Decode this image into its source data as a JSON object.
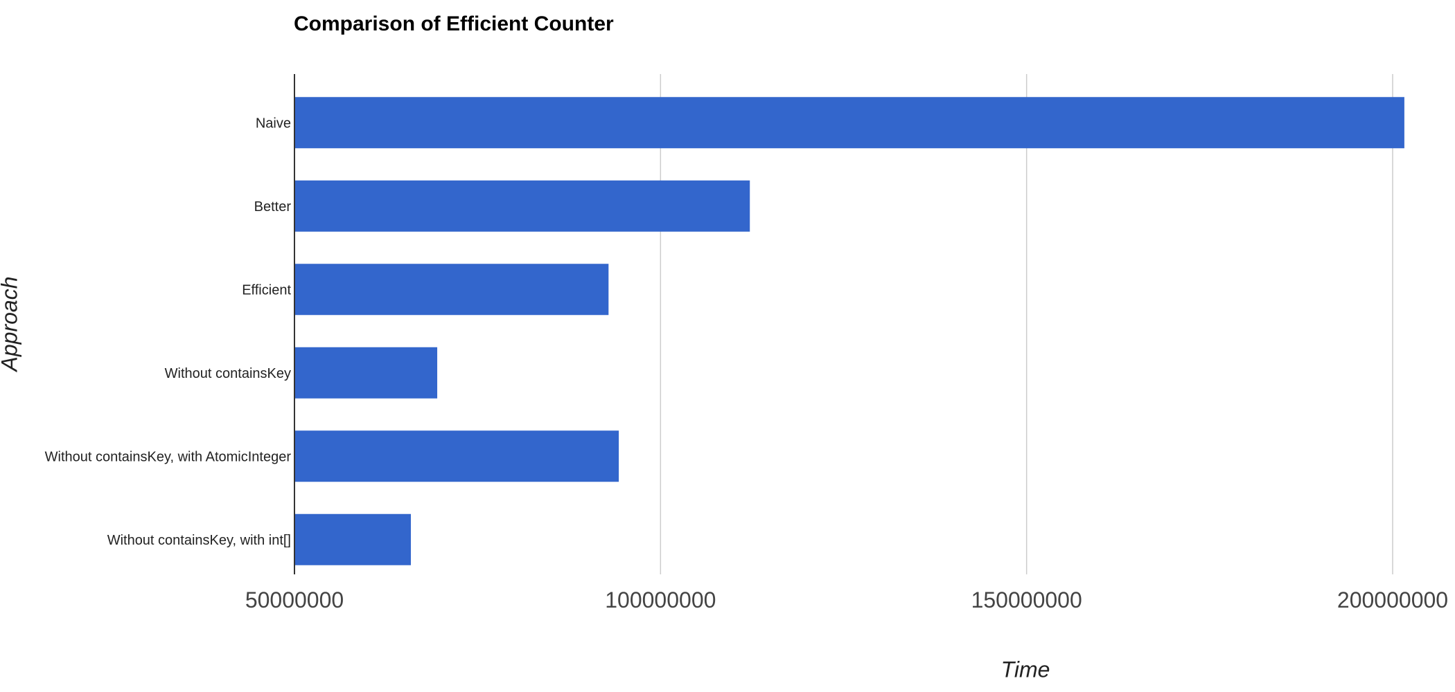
{
  "chart_data": {
    "type": "bar",
    "orientation": "horizontal",
    "title": "Comparison of Efficient Counter",
    "xlabel": "Time",
    "ylabel": "Approach",
    "categories": [
      "Naive",
      "Better",
      "Efficient",
      "Without containsKey",
      "Without containsKey, with AtomicInteger",
      "Without containsKey, with int[]"
    ],
    "values": [
      201600000,
      112200000,
      92900000,
      69500000,
      94300000,
      65900000
    ],
    "xlim": [
      50000000,
      200000000
    ],
    "xticks": [
      "50000000",
      "100000000",
      "150000000",
      "200000000"
    ],
    "grid": true,
    "legend": "none",
    "colors": {
      "bar": "#3366cc",
      "grid": "#cccccc",
      "axis": "#333333"
    }
  }
}
